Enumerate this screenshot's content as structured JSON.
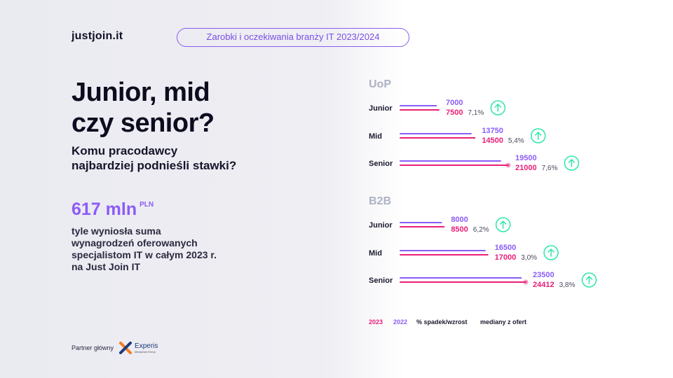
{
  "header": {
    "logo": "justjoin.it",
    "report_title": "Zarobki i oczekiwania branży IT 2023/2024"
  },
  "left": {
    "headline_line1": "Junior, mid",
    "headline_line2": "czy senior?",
    "subhead_line1": "Komu pracodawcy",
    "subhead_line2": "najbardziej podnieśli stawki?",
    "stat_value": "617 mln",
    "stat_unit": "PLN",
    "stat_desc_line1": "tyle wyniosła suma",
    "stat_desc_line2": "wynagrodzeń oferowanych",
    "stat_desc_line3": "specjalistom IT w całym 2023 r.",
    "stat_desc_line4": "na Just Join IT"
  },
  "partner": {
    "label": "Partner główny",
    "name": "Experis",
    "sub": "ManpowerGroup"
  },
  "colors": {
    "y2022": "#8b5cf6",
    "y2023": "#e91e77",
    "up_arrow": "#2ee8a6",
    "section_title": "#aeb2c4"
  },
  "chart_data": {
    "type": "bar",
    "orientation": "horizontal",
    "title": "",
    "xlim": [
      0,
      24412
    ],
    "legend": [
      {
        "label": "2023",
        "color": "#e91e77"
      },
      {
        "label": "2022",
        "color": "#8b5cf6"
      },
      {
        "label": "% spadek/wzrost",
        "color": "#1a1a2e"
      },
      {
        "label": "mediany z ofert",
        "color": "#1a1a2e"
      }
    ],
    "groups": [
      {
        "name": "UoP",
        "categories": [
          "Junior",
          "Mid",
          "Senior"
        ],
        "series": [
          {
            "name": "2022",
            "values": [
              7000,
              13750,
              19500
            ]
          },
          {
            "name": "2023",
            "values": [
              7500,
              14500,
              21000
            ]
          }
        ],
        "change_pct": [
          "7,1%",
          "5,4%",
          "7,6%"
        ],
        "trend": [
          "up",
          "up",
          "up"
        ]
      },
      {
        "name": "B2B",
        "categories": [
          "Junior",
          "Mid",
          "Senior"
        ],
        "series": [
          {
            "name": "2022",
            "values": [
              8000,
              16500,
              23500
            ]
          },
          {
            "name": "2023",
            "values": [
              8500,
              17000,
              24412
            ]
          }
        ],
        "change_pct": [
          "6,2%",
          "3,0%",
          "3,8%"
        ],
        "trend": [
          "up",
          "up",
          "up"
        ]
      }
    ]
  }
}
